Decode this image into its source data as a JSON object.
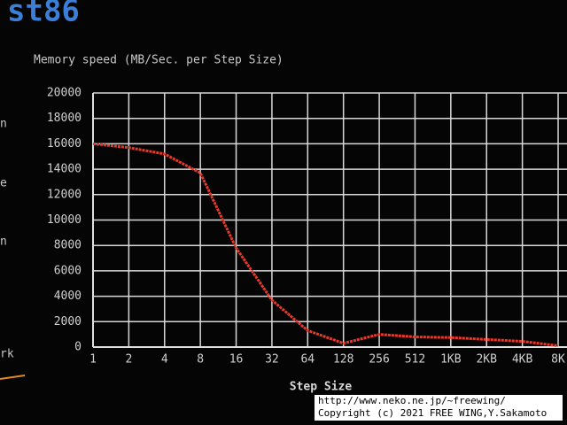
{
  "header": "st86",
  "side_labels": [
    "n",
    "e",
    "n",
    "rk"
  ],
  "watermark": [
    "http://www.neko.ne.jp/~freewing/",
    "Copyright (c) 2021 FREE WING,Y.Sakamoto"
  ],
  "chart_data": {
    "type": "line",
    "title": "Memory speed (MB/Sec. per Step Size)",
    "x_label": "Step Size",
    "categories": [
      "1",
      "2",
      "4",
      "8",
      "16",
      "32",
      "64",
      "128",
      "256",
      "512",
      "1KB",
      "2KB",
      "4KB",
      "8K"
    ],
    "series": [
      {
        "name": "Memory speed",
        "color": "#e8392a",
        "values": [
          16000,
          15700,
          15200,
          13700,
          7800,
          3700,
          1300,
          300,
          1000,
          800,
          750,
          600,
          450,
          100
        ]
      }
    ],
    "ylim": [
      0,
      20000
    ],
    "yticks": [
      0,
      2000,
      4000,
      6000,
      8000,
      10000,
      12000,
      14000,
      16000,
      18000,
      20000
    ],
    "grid": true
  }
}
